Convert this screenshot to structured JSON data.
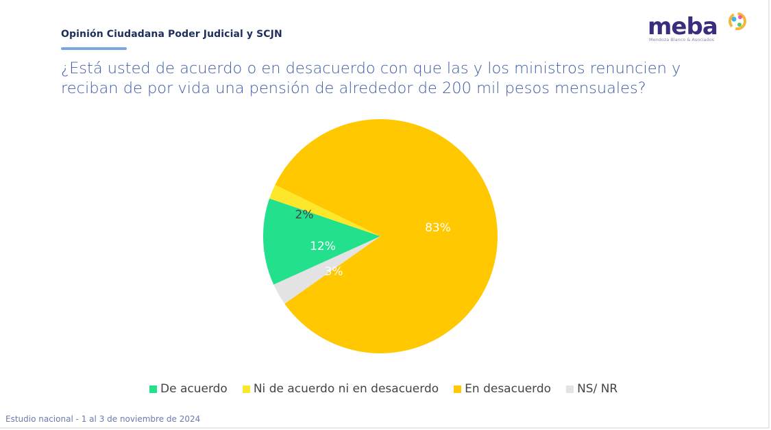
{
  "header": {
    "title": "Opinión Ciudadana Poder Judicial y SCJN"
  },
  "question": "¿Está usted de acuerdo o en desacuerdo con que las y los ministros renuncien y reciban de por vida una pensión de alrededor de 200 mil pesos mensuales?",
  "logo": {
    "wordmark": "meba",
    "subtitle": "Mendoza Blanco & Asociados"
  },
  "chart_data": {
    "type": "pie",
    "title": "¿Está usted de acuerdo o en desacuerdo con que las y los ministros renuncien y reciban de por vida una pensión de alrededor de 200 mil pesos mensuales?",
    "categories": [
      "De acuerdo",
      "Ni de acuerdo ni en desacuerdo",
      "En desacuerdo",
      "NS/ NR"
    ],
    "values": [
      12,
      2,
      83,
      3
    ],
    "labels": [
      "12%",
      "2%",
      "83%",
      "3%"
    ],
    "colors": [
      "#22e08c",
      "#fde72a",
      "#ffc800",
      "#e3e3e3"
    ],
    "label_colors": [
      "#ffffff",
      "#444444",
      "#ffffff",
      "#ffffff"
    ],
    "legend_position": "bottom"
  },
  "footer": "Estudio nacional - 1 al 3 de noviembre de 2024"
}
